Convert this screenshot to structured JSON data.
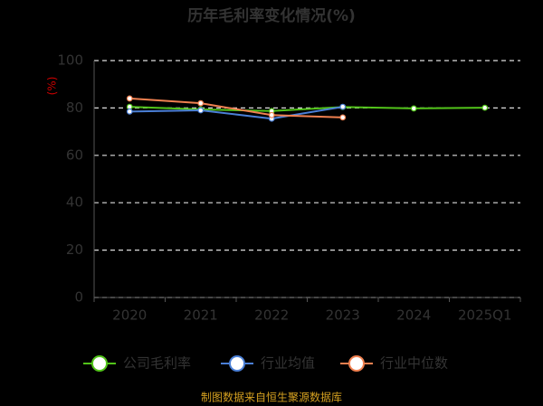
{
  "chart_data": {
    "type": "line",
    "title": "历年毛利率变化情况(%)",
    "y_label": "(%)",
    "categories": [
      "2020",
      "2021",
      "2022",
      "2023",
      "2024",
      "2025Q1"
    ],
    "series": [
      {
        "name": "公司毛利率",
        "color": "#52c41a",
        "values": [
          80.5,
          79.4,
          78.7,
          80.4,
          79.8,
          80.1
        ]
      },
      {
        "name": "行业均值",
        "color": "#4a7fd6",
        "values": [
          78.5,
          79.0,
          75.5,
          80.5,
          null,
          null
        ]
      },
      {
        "name": "行业中位数",
        "color": "#f08050",
        "values": [
          84.0,
          82.0,
          77.0,
          76.0,
          null,
          null
        ]
      }
    ],
    "ylim": [
      0,
      100
    ],
    "yticks": [
      0,
      20,
      40,
      60,
      80,
      100
    ],
    "grid": true,
    "source": "制图数据来自恒生聚源数据库"
  }
}
